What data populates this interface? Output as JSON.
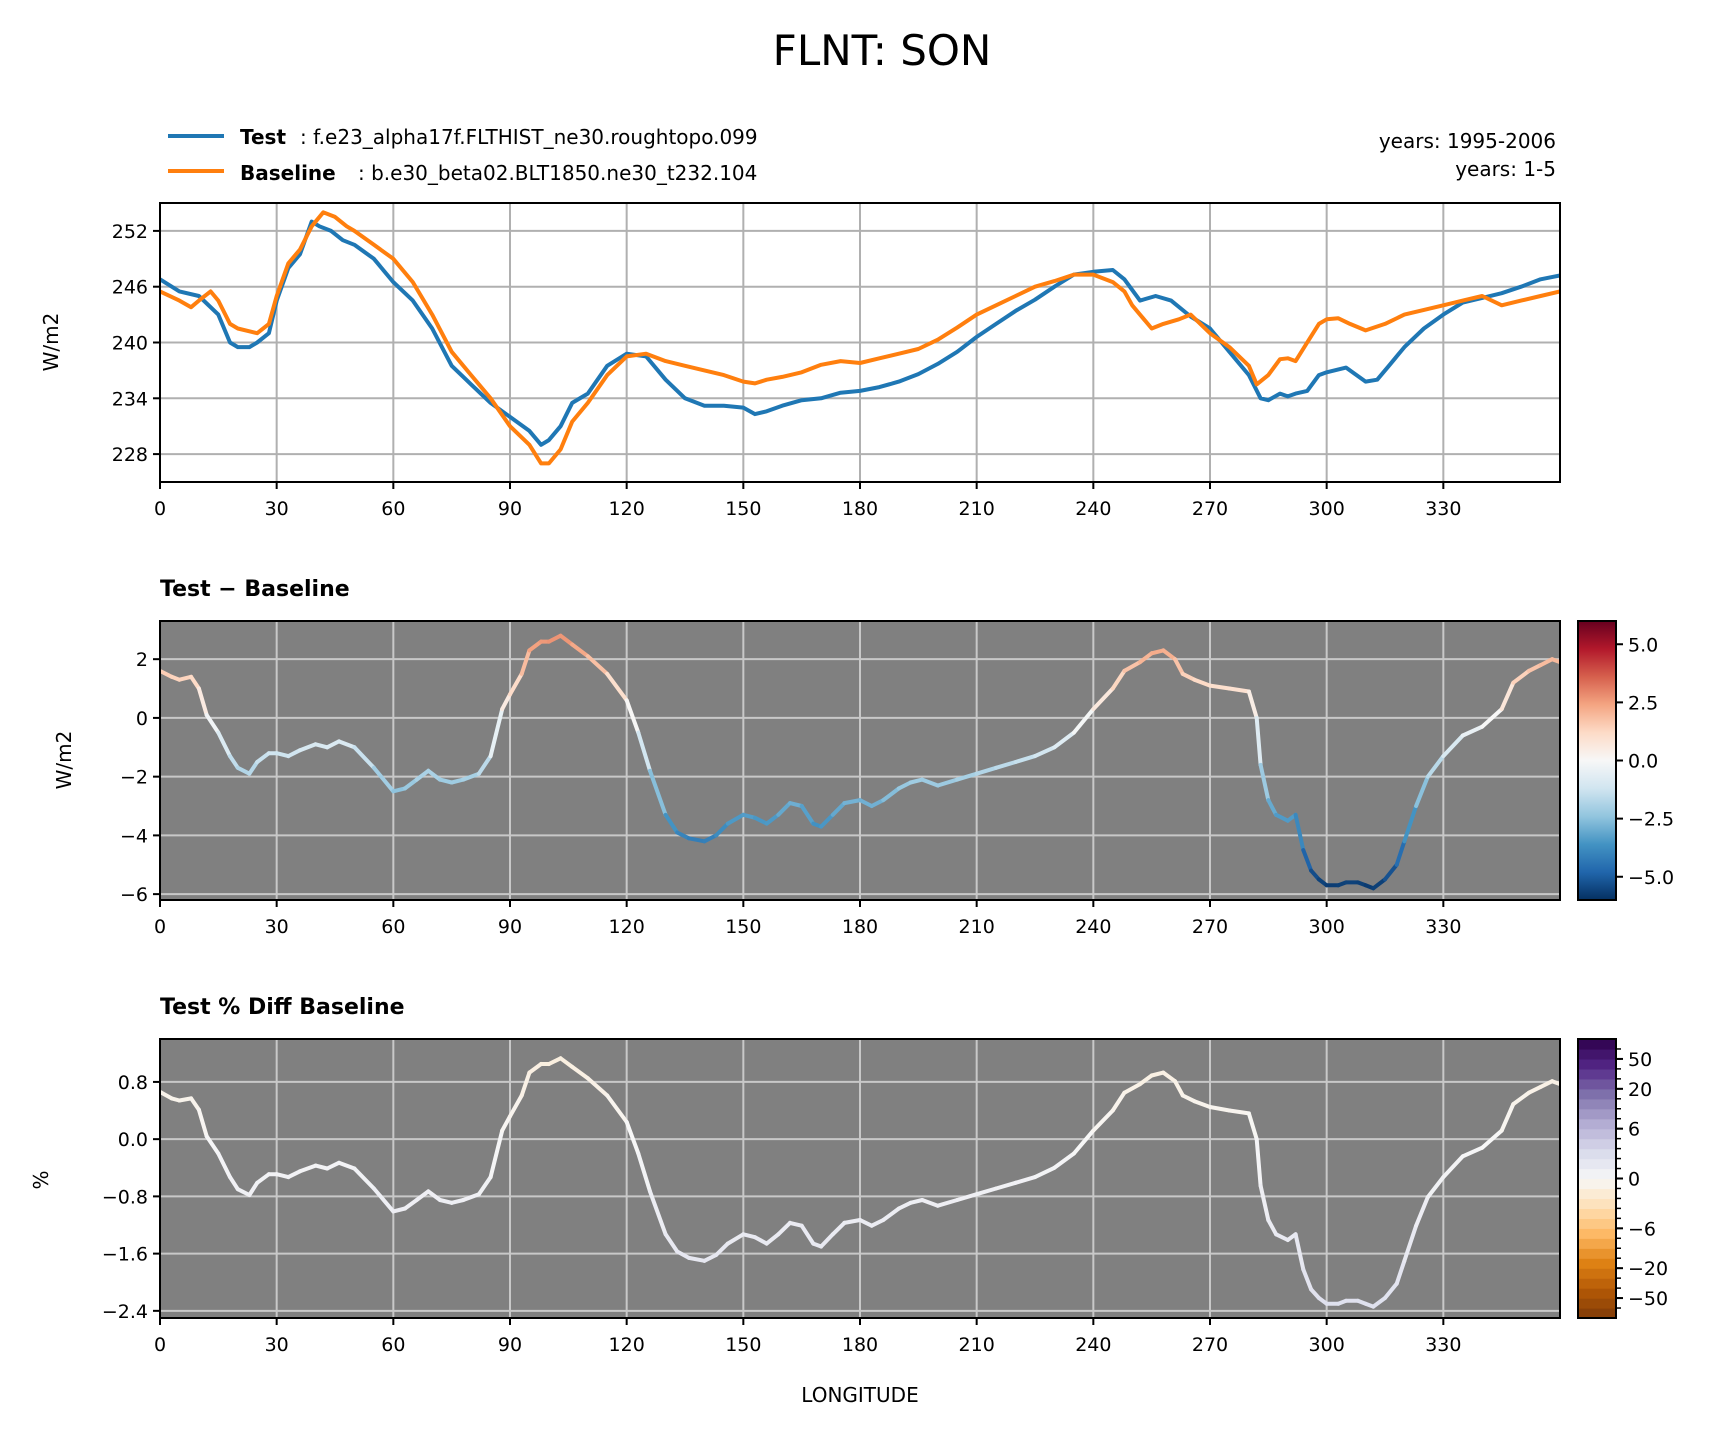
{
  "figure": {
    "title": "FLNT: SON",
    "legend": {
      "test_label": "Test",
      "test_case": ": f.e23_alpha17f.FLTHIST_ne30.roughtopo.099",
      "baseline_label": "Baseline",
      "baseline_case": ": b.e30_beta02.BLT1850.ne30_t232.104",
      "test_years": "years: 1995-2006",
      "baseline_years": "years: 1-5"
    },
    "xlabel": "LONGITUDE"
  },
  "colors": {
    "test": "#1f77b4",
    "baseline": "#ff7f0e",
    "panel_bg": "#808080",
    "grid": "#b0b0b0",
    "grid_on_gray": "#c8c8c8"
  },
  "chart_data": [
    {
      "id": "top",
      "type": "line",
      "title": "",
      "xlabel": "",
      "ylabel": "W/m2",
      "xlim": [
        0,
        360
      ],
      "ylim": [
        225.0,
        255.0
      ],
      "xticks": [
        0,
        30,
        60,
        90,
        120,
        150,
        180,
        210,
        240,
        270,
        300,
        330
      ],
      "yticks": [
        228,
        234,
        240,
        246,
        252
      ],
      "ytick_labels": [
        "228",
        "234",
        "240",
        "246",
        "252"
      ],
      "grid": true,
      "series": [
        {
          "name": "Test",
          "x": [
            0,
            5,
            10,
            15,
            18,
            20,
            23,
            25,
            28,
            30,
            33,
            36,
            39,
            41,
            44,
            47,
            50,
            55,
            60,
            65,
            70,
            75,
            80,
            85,
            90,
            95,
            98,
            100,
            103,
            106,
            110,
            115,
            120,
            125,
            130,
            135,
            140,
            145,
            150,
            153,
            156,
            160,
            165,
            170,
            175,
            180,
            185,
            190,
            195,
            200,
            205,
            210,
            215,
            220,
            225,
            230,
            235,
            240,
            245,
            248,
            252,
            256,
            260,
            265,
            270,
            275,
            280,
            283,
            285,
            288,
            290,
            292,
            295,
            298,
            300,
            305,
            310,
            313,
            316,
            320,
            325,
            330,
            335,
            340,
            345,
            350,
            355,
            360
          ],
          "y": [
            246.8,
            245.5,
            245.0,
            243.0,
            240.0,
            239.5,
            239.5,
            240.0,
            241.0,
            244.5,
            248.0,
            249.5,
            253.0,
            252.5,
            252.0,
            251.0,
            250.5,
            249.0,
            246.5,
            244.5,
            241.5,
            237.5,
            235.5,
            233.5,
            232.0,
            230.5,
            229.0,
            229.5,
            231.0,
            233.5,
            234.5,
            237.5,
            238.8,
            238.5,
            236.0,
            234.0,
            233.2,
            233.2,
            233.0,
            232.3,
            232.6,
            233.2,
            233.8,
            234.0,
            234.6,
            234.8,
            235.2,
            235.8,
            236.6,
            237.7,
            239.0,
            240.6,
            242.0,
            243.4,
            244.6,
            246.0,
            247.3,
            247.6,
            247.8,
            246.8,
            244.5,
            245.0,
            244.5,
            242.8,
            241.5,
            239.0,
            236.5,
            234.0,
            233.8,
            234.5,
            234.2,
            234.5,
            234.8,
            236.5,
            236.8,
            237.3,
            235.8,
            236.0,
            237.5,
            239.5,
            241.5,
            243.0,
            244.3,
            244.8,
            245.3,
            246.0,
            246.8,
            247.2
          ]
        },
        {
          "name": "Baseline",
          "x": [
            0,
            5,
            8,
            10,
            13,
            15,
            18,
            20,
            23,
            25,
            28,
            30,
            33,
            36,
            39,
            42,
            45,
            48,
            50,
            55,
            60,
            65,
            70,
            75,
            80,
            85,
            90,
            95,
            98,
            100,
            103,
            106,
            110,
            115,
            120,
            125,
            130,
            135,
            140,
            145,
            150,
            153,
            156,
            160,
            165,
            170,
            175,
            180,
            185,
            190,
            195,
            200,
            205,
            210,
            215,
            220,
            225,
            230,
            235,
            240,
            245,
            248,
            250,
            255,
            258,
            262,
            265,
            270,
            275,
            280,
            282,
            285,
            288,
            290,
            292,
            295,
            298,
            300,
            303,
            306,
            310,
            315,
            320,
            325,
            330,
            335,
            340,
            345,
            350,
            355,
            360
          ],
          "y": [
            245.5,
            244.5,
            243.8,
            244.5,
            245.5,
            244.5,
            242.0,
            241.5,
            241.2,
            241.0,
            242.0,
            245.0,
            248.5,
            250.0,
            252.5,
            254.0,
            253.5,
            252.5,
            252.0,
            250.5,
            249.0,
            246.5,
            243.0,
            239.0,
            236.5,
            234.0,
            231.0,
            229.0,
            227.0,
            227.0,
            228.5,
            231.5,
            233.5,
            236.5,
            238.5,
            238.8,
            238.0,
            237.5,
            237.0,
            236.5,
            235.8,
            235.6,
            236.0,
            236.3,
            236.8,
            237.6,
            238.0,
            237.8,
            238.3,
            238.8,
            239.3,
            240.3,
            241.6,
            243.0,
            244.0,
            245.0,
            246.0,
            246.6,
            247.3,
            247.3,
            246.5,
            245.5,
            244.0,
            241.5,
            242.0,
            242.5,
            243.0,
            241.0,
            239.5,
            237.5,
            235.5,
            236.5,
            238.2,
            238.3,
            238.0,
            240.0,
            242.0,
            242.5,
            242.6,
            242.0,
            241.3,
            242.0,
            243.0,
            243.5,
            244.0,
            244.5,
            245.0,
            244.0,
            244.5,
            245.0,
            245.5
          ]
        }
      ]
    },
    {
      "id": "diff",
      "type": "line",
      "title": "Test − Baseline",
      "xlabel": "",
      "ylabel": "W/m2",
      "xlim": [
        0,
        360
      ],
      "ylim": [
        -6.2,
        3.3
      ],
      "xticks": [
        0,
        30,
        60,
        90,
        120,
        150,
        180,
        210,
        240,
        270,
        300,
        330
      ],
      "yticks": [
        -6,
        -4,
        -2,
        0,
        2
      ],
      "ytick_labels": [
        "−6",
        "−4",
        "−2",
        "0",
        "2"
      ],
      "grid": true,
      "colorbar": {
        "min": -6.0,
        "max": 6.0,
        "ticks": [
          -5.0,
          -2.5,
          0.0,
          2.5,
          5.0
        ],
        "tick_labels": [
          "−5.0",
          "−2.5",
          "0.0",
          "2.5",
          "5.0"
        ],
        "colormap": "RdBu_r"
      },
      "series": [
        {
          "name": "Test − Baseline",
          "x": [
            0,
            3,
            5,
            8,
            10,
            12,
            15,
            18,
            20,
            23,
            25,
            28,
            30,
            33,
            36,
            40,
            43,
            46,
            50,
            55,
            60,
            63,
            66,
            69,
            72,
            75,
            78,
            82,
            85,
            88,
            90,
            93,
            95,
            98,
            100,
            103,
            106,
            110,
            115,
            120,
            123,
            126,
            130,
            133,
            136,
            140,
            143,
            146,
            150,
            153,
            156,
            159,
            162,
            165,
            168,
            170,
            173,
            176,
            180,
            183,
            186,
            190,
            193,
            196,
            200,
            205,
            210,
            215,
            220,
            225,
            230,
            235,
            240,
            245,
            248,
            252,
            255,
            258,
            261,
            263,
            266,
            270,
            275,
            280,
            282,
            283,
            285,
            287,
            290,
            292,
            294,
            296,
            298,
            300,
            303,
            305,
            308,
            310,
            312,
            315,
            318,
            320,
            323,
            326,
            330,
            335,
            340,
            345,
            348,
            352,
            355,
            358,
            360
          ],
          "y": [
            1.6,
            1.4,
            1.3,
            1.4,
            1.0,
            0.1,
            -0.5,
            -1.3,
            -1.7,
            -1.9,
            -1.5,
            -1.2,
            -1.2,
            -1.3,
            -1.1,
            -0.9,
            -1.0,
            -0.8,
            -1.0,
            -1.7,
            -2.5,
            -2.4,
            -2.1,
            -1.8,
            -2.1,
            -2.2,
            -2.1,
            -1.9,
            -1.3,
            0.3,
            0.8,
            1.5,
            2.3,
            2.6,
            2.6,
            2.8,
            2.5,
            2.1,
            1.5,
            0.6,
            -0.5,
            -1.8,
            -3.3,
            -3.9,
            -4.1,
            -4.2,
            -4.0,
            -3.6,
            -3.3,
            -3.4,
            -3.6,
            -3.3,
            -2.9,
            -3.0,
            -3.6,
            -3.7,
            -3.3,
            -2.9,
            -2.8,
            -3.0,
            -2.8,
            -2.4,
            -2.2,
            -2.1,
            -2.3,
            -2.1,
            -1.9,
            -1.7,
            -1.5,
            -1.3,
            -1.0,
            -0.5,
            0.3,
            1.0,
            1.6,
            1.9,
            2.2,
            2.3,
            2.0,
            1.5,
            1.3,
            1.1,
            1.0,
            0.9,
            0.0,
            -1.6,
            -2.8,
            -3.3,
            -3.5,
            -3.3,
            -4.5,
            -5.2,
            -5.5,
            -5.7,
            -5.7,
            -5.6,
            -5.6,
            -5.7,
            -5.8,
            -5.5,
            -5.0,
            -4.2,
            -3.0,
            -2.0,
            -1.3,
            -0.6,
            -0.3,
            0.3,
            1.2,
            1.6,
            1.8,
            2.0,
            1.9
          ]
        }
      ]
    },
    {
      "id": "pct",
      "type": "line",
      "title": "Test % Diff Baseline",
      "xlabel": "LONGITUDE",
      "ylabel": "%",
      "xlim": [
        0,
        360
      ],
      "ylim": [
        -2.5,
        1.4
      ],
      "xticks": [
        0,
        30,
        60,
        90,
        120,
        150,
        180,
        210,
        240,
        270,
        300,
        330
      ],
      "yticks": [
        -2.4,
        -1.6,
        -0.8,
        0.0,
        0.8
      ],
      "ytick_labels": [
        "−2.4",
        "−1.6",
        "−0.8",
        "0.0",
        "0.8"
      ],
      "grid": true,
      "colorbar": {
        "levels": [
          -100,
          -70,
          -50,
          -40,
          -30,
          -20,
          -15,
          -10,
          -8,
          -6,
          -4,
          -2,
          -1,
          -0.5,
          0,
          0.5,
          1,
          2,
          4,
          6,
          8,
          10,
          15,
          20,
          30,
          40,
          50,
          70,
          100
        ],
        "ticks": [
          50,
          20,
          6,
          0,
          -6,
          -20,
          -50
        ],
        "tick_labels": [
          "50",
          "20",
          "6",
          "0",
          "−6",
          "−20",
          "−50"
        ],
        "colormap": "PuOr_r"
      },
      "series": [
        {
          "name": "Test % Diff Baseline",
          "x": [
            0,
            3,
            5,
            8,
            10,
            12,
            15,
            18,
            20,
            23,
            25,
            28,
            30,
            33,
            36,
            40,
            43,
            46,
            50,
            55,
            60,
            63,
            66,
            69,
            72,
            75,
            78,
            82,
            85,
            88,
            90,
            93,
            95,
            98,
            100,
            103,
            106,
            110,
            115,
            120,
            123,
            126,
            130,
            133,
            136,
            140,
            143,
            146,
            150,
            153,
            156,
            159,
            162,
            165,
            168,
            170,
            173,
            176,
            180,
            183,
            186,
            190,
            193,
            196,
            200,
            205,
            210,
            215,
            220,
            225,
            230,
            235,
            240,
            245,
            248,
            252,
            255,
            258,
            261,
            263,
            266,
            270,
            275,
            280,
            282,
            283,
            285,
            287,
            290,
            292,
            294,
            296,
            298,
            300,
            303,
            305,
            308,
            310,
            312,
            315,
            318,
            320,
            323,
            326,
            330,
            335,
            340,
            345,
            348,
            352,
            355,
            358,
            360
          ],
          "y": [
            0.66,
            0.57,
            0.54,
            0.57,
            0.41,
            0.04,
            -0.2,
            -0.53,
            -0.7,
            -0.78,
            -0.61,
            -0.49,
            -0.49,
            -0.53,
            -0.45,
            -0.37,
            -0.41,
            -0.33,
            -0.41,
            -0.69,
            -1.01,
            -0.97,
            -0.85,
            -0.73,
            -0.85,
            -0.89,
            -0.85,
            -0.77,
            -0.53,
            0.12,
            0.32,
            0.61,
            0.93,
            1.05,
            1.05,
            1.13,
            1.01,
            0.85,
            0.61,
            0.24,
            -0.2,
            -0.73,
            -1.33,
            -1.57,
            -1.66,
            -1.7,
            -1.62,
            -1.46,
            -1.33,
            -1.37,
            -1.46,
            -1.33,
            -1.17,
            -1.21,
            -1.46,
            -1.5,
            -1.33,
            -1.17,
            -1.13,
            -1.21,
            -1.13,
            -0.97,
            -0.89,
            -0.85,
            -0.93,
            -0.85,
            -0.77,
            -0.69,
            -0.61,
            -0.53,
            -0.4,
            -0.2,
            0.12,
            0.4,
            0.65,
            0.77,
            0.89,
            0.93,
            0.81,
            0.61,
            0.53,
            0.45,
            0.4,
            0.36,
            0.0,
            -0.65,
            -1.13,
            -1.33,
            -1.41,
            -1.33,
            -1.82,
            -2.1,
            -2.22,
            -2.3,
            -2.3,
            -2.26,
            -2.26,
            -2.3,
            -2.34,
            -2.22,
            -2.02,
            -1.7,
            -1.21,
            -0.81,
            -0.53,
            -0.24,
            -0.12,
            0.12,
            0.49,
            0.65,
            0.73,
            0.81,
            0.77
          ]
        }
      ]
    }
  ]
}
